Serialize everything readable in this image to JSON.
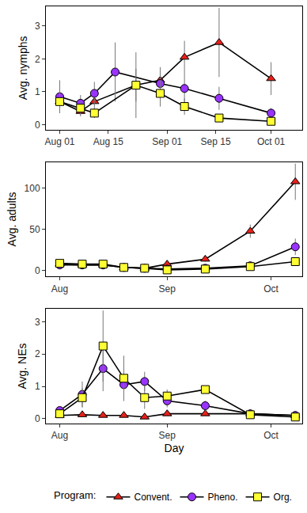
{
  "chart_data": [
    {
      "type": "line",
      "ylabel": "Avg. nymphs",
      "grid": false,
      "xlim": [
        -4,
        70
      ],
      "xticks": [
        {
          "value": 0,
          "label": "Aug 01"
        },
        {
          "value": 14,
          "label": "Aug 15"
        },
        {
          "value": 31,
          "label": "Sep 01"
        },
        {
          "value": 45,
          "label": "Sep 15"
        },
        {
          "value": 61,
          "label": "Oct 01"
        }
      ],
      "ylim": [
        -0.15,
        3.6
      ],
      "yticks": [
        0,
        1,
        2,
        3
      ],
      "series": [
        {
          "name": "Convent.",
          "color": "#e8201a",
          "marker": "triangle-up",
          "x": [
            0,
            6,
            10,
            22,
            29,
            36,
            46,
            61
          ],
          "values": [
            0.7,
            0.4,
            0.7,
            1.2,
            1.35,
            2.05,
            2.5,
            1.4
          ],
          "error": [
            0.3,
            0.15,
            0.25,
            1.0,
            0.4,
            0.5,
            1.05,
            0.5
          ]
        },
        {
          "name": "Pheno.",
          "color": "#9933ff",
          "marker": "circle",
          "x": [
            0,
            6,
            10,
            16,
            29,
            36,
            46,
            61
          ],
          "values": [
            0.85,
            0.65,
            0.95,
            1.6,
            1.25,
            1.1,
            0.8,
            0.35
          ],
          "error": [
            0.5,
            0.25,
            0.35,
            0.9,
            0.4,
            0.45,
            0.35,
            0.15
          ]
        },
        {
          "name": "Org.",
          "color": "#ffff33",
          "marker": "square",
          "x": [
            0,
            6,
            10,
            22,
            29,
            36,
            46,
            61
          ],
          "values": [
            0.7,
            0.5,
            0.35,
            1.2,
            0.95,
            0.55,
            0.2,
            0.1
          ],
          "error": [
            0.35,
            0.2,
            0.15,
            0.5,
            0.4,
            0.25,
            0.1,
            0.05
          ]
        }
      ]
    },
    {
      "type": "line",
      "ylabel": "Avg. adults",
      "grid": false,
      "xlim": [
        -4,
        70
      ],
      "xticks": [
        {
          "value": 0,
          "label": "Aug"
        },
        {
          "value": 31,
          "label": "Sep"
        },
        {
          "value": 61,
          "label": "Oct"
        }
      ],
      "ylim": [
        -7,
        132
      ],
      "yticks": [
        0,
        50,
        100
      ],
      "series": [
        {
          "name": "Convent.",
          "color": "#e8201a",
          "marker": "triangle-up",
          "x": [
            0,
            6.5,
            12.5,
            18.5,
            24.5,
            31,
            42,
            55,
            68
          ],
          "values": [
            8,
            7,
            7,
            4,
            3,
            8,
            14,
            48,
            108
          ],
          "error": [
            2,
            2,
            2,
            1,
            1,
            2,
            3,
            8,
            22
          ]
        },
        {
          "name": "Pheno.",
          "color": "#9933ff",
          "marker": "circle",
          "x": [
            0,
            6.5,
            12.5,
            18.5,
            24.5,
            31,
            42,
            55,
            68
          ],
          "values": [
            7,
            7,
            7,
            4,
            3,
            2,
            3,
            6,
            29
          ],
          "error": [
            2,
            2,
            2,
            1,
            1,
            1,
            1,
            2,
            10
          ]
        },
        {
          "name": "Org.",
          "color": "#ffff33",
          "marker": "square",
          "x": [
            0,
            6.5,
            12.5,
            18.5,
            24.5,
            31,
            42,
            55,
            68
          ],
          "values": [
            9,
            8,
            8,
            4,
            3,
            1,
            2,
            5,
            11
          ],
          "error": [
            3,
            2,
            2,
            1,
            1,
            1,
            1,
            2,
            4
          ]
        }
      ]
    },
    {
      "type": "line",
      "ylabel": "Avg. NEs",
      "xlabel": "Day",
      "grid": false,
      "xlim": [
        -4,
        70
      ],
      "xticks": [
        {
          "value": 0,
          "label": "Aug"
        },
        {
          "value": 31,
          "label": "Sep"
        },
        {
          "value": 61,
          "label": "Oct"
        }
      ],
      "ylim": [
        -0.15,
        3.4
      ],
      "yticks": [
        0,
        1,
        2,
        3
      ],
      "legend": "bottom",
      "legend_title": "Program:",
      "series": [
        {
          "name": "Convent.",
          "color": "#e8201a",
          "marker": "triangle-up",
          "x": [
            0,
            6.5,
            12.5,
            18.5,
            24.5,
            31,
            42,
            55,
            68
          ],
          "values": [
            0.1,
            0.12,
            0.1,
            0.1,
            0.05,
            0.15,
            0.15,
            0.15,
            0.1
          ],
          "error": [
            0.05,
            0.05,
            0.05,
            0.05,
            0.03,
            0.05,
            0.05,
            0.05,
            0.05
          ]
        },
        {
          "name": "Pheno.",
          "color": "#9933ff",
          "marker": "circle",
          "x": [
            0,
            6.5,
            12.5,
            18.5,
            24.5,
            31,
            42,
            55,
            68
          ],
          "values": [
            0.25,
            0.75,
            1.55,
            1.05,
            1.15,
            0.55,
            0.4,
            0.15,
            0.1
          ],
          "error": [
            0.1,
            0.4,
            0.7,
            0.5,
            0.3,
            0.2,
            0.15,
            0.05,
            0.05
          ]
        },
        {
          "name": "Org.",
          "color": "#ffff33",
          "marker": "square",
          "x": [
            0,
            6.5,
            12.5,
            18.5,
            24.5,
            31,
            42,
            55,
            68
          ],
          "values": [
            0.15,
            0.65,
            2.25,
            1.25,
            0.65,
            0.7,
            0.9,
            0.12,
            0.05
          ],
          "error": [
            0.1,
            0.3,
            1.1,
            0.7,
            0.35,
            0.2,
            0.1,
            0.05,
            0.03
          ]
        }
      ]
    }
  ]
}
